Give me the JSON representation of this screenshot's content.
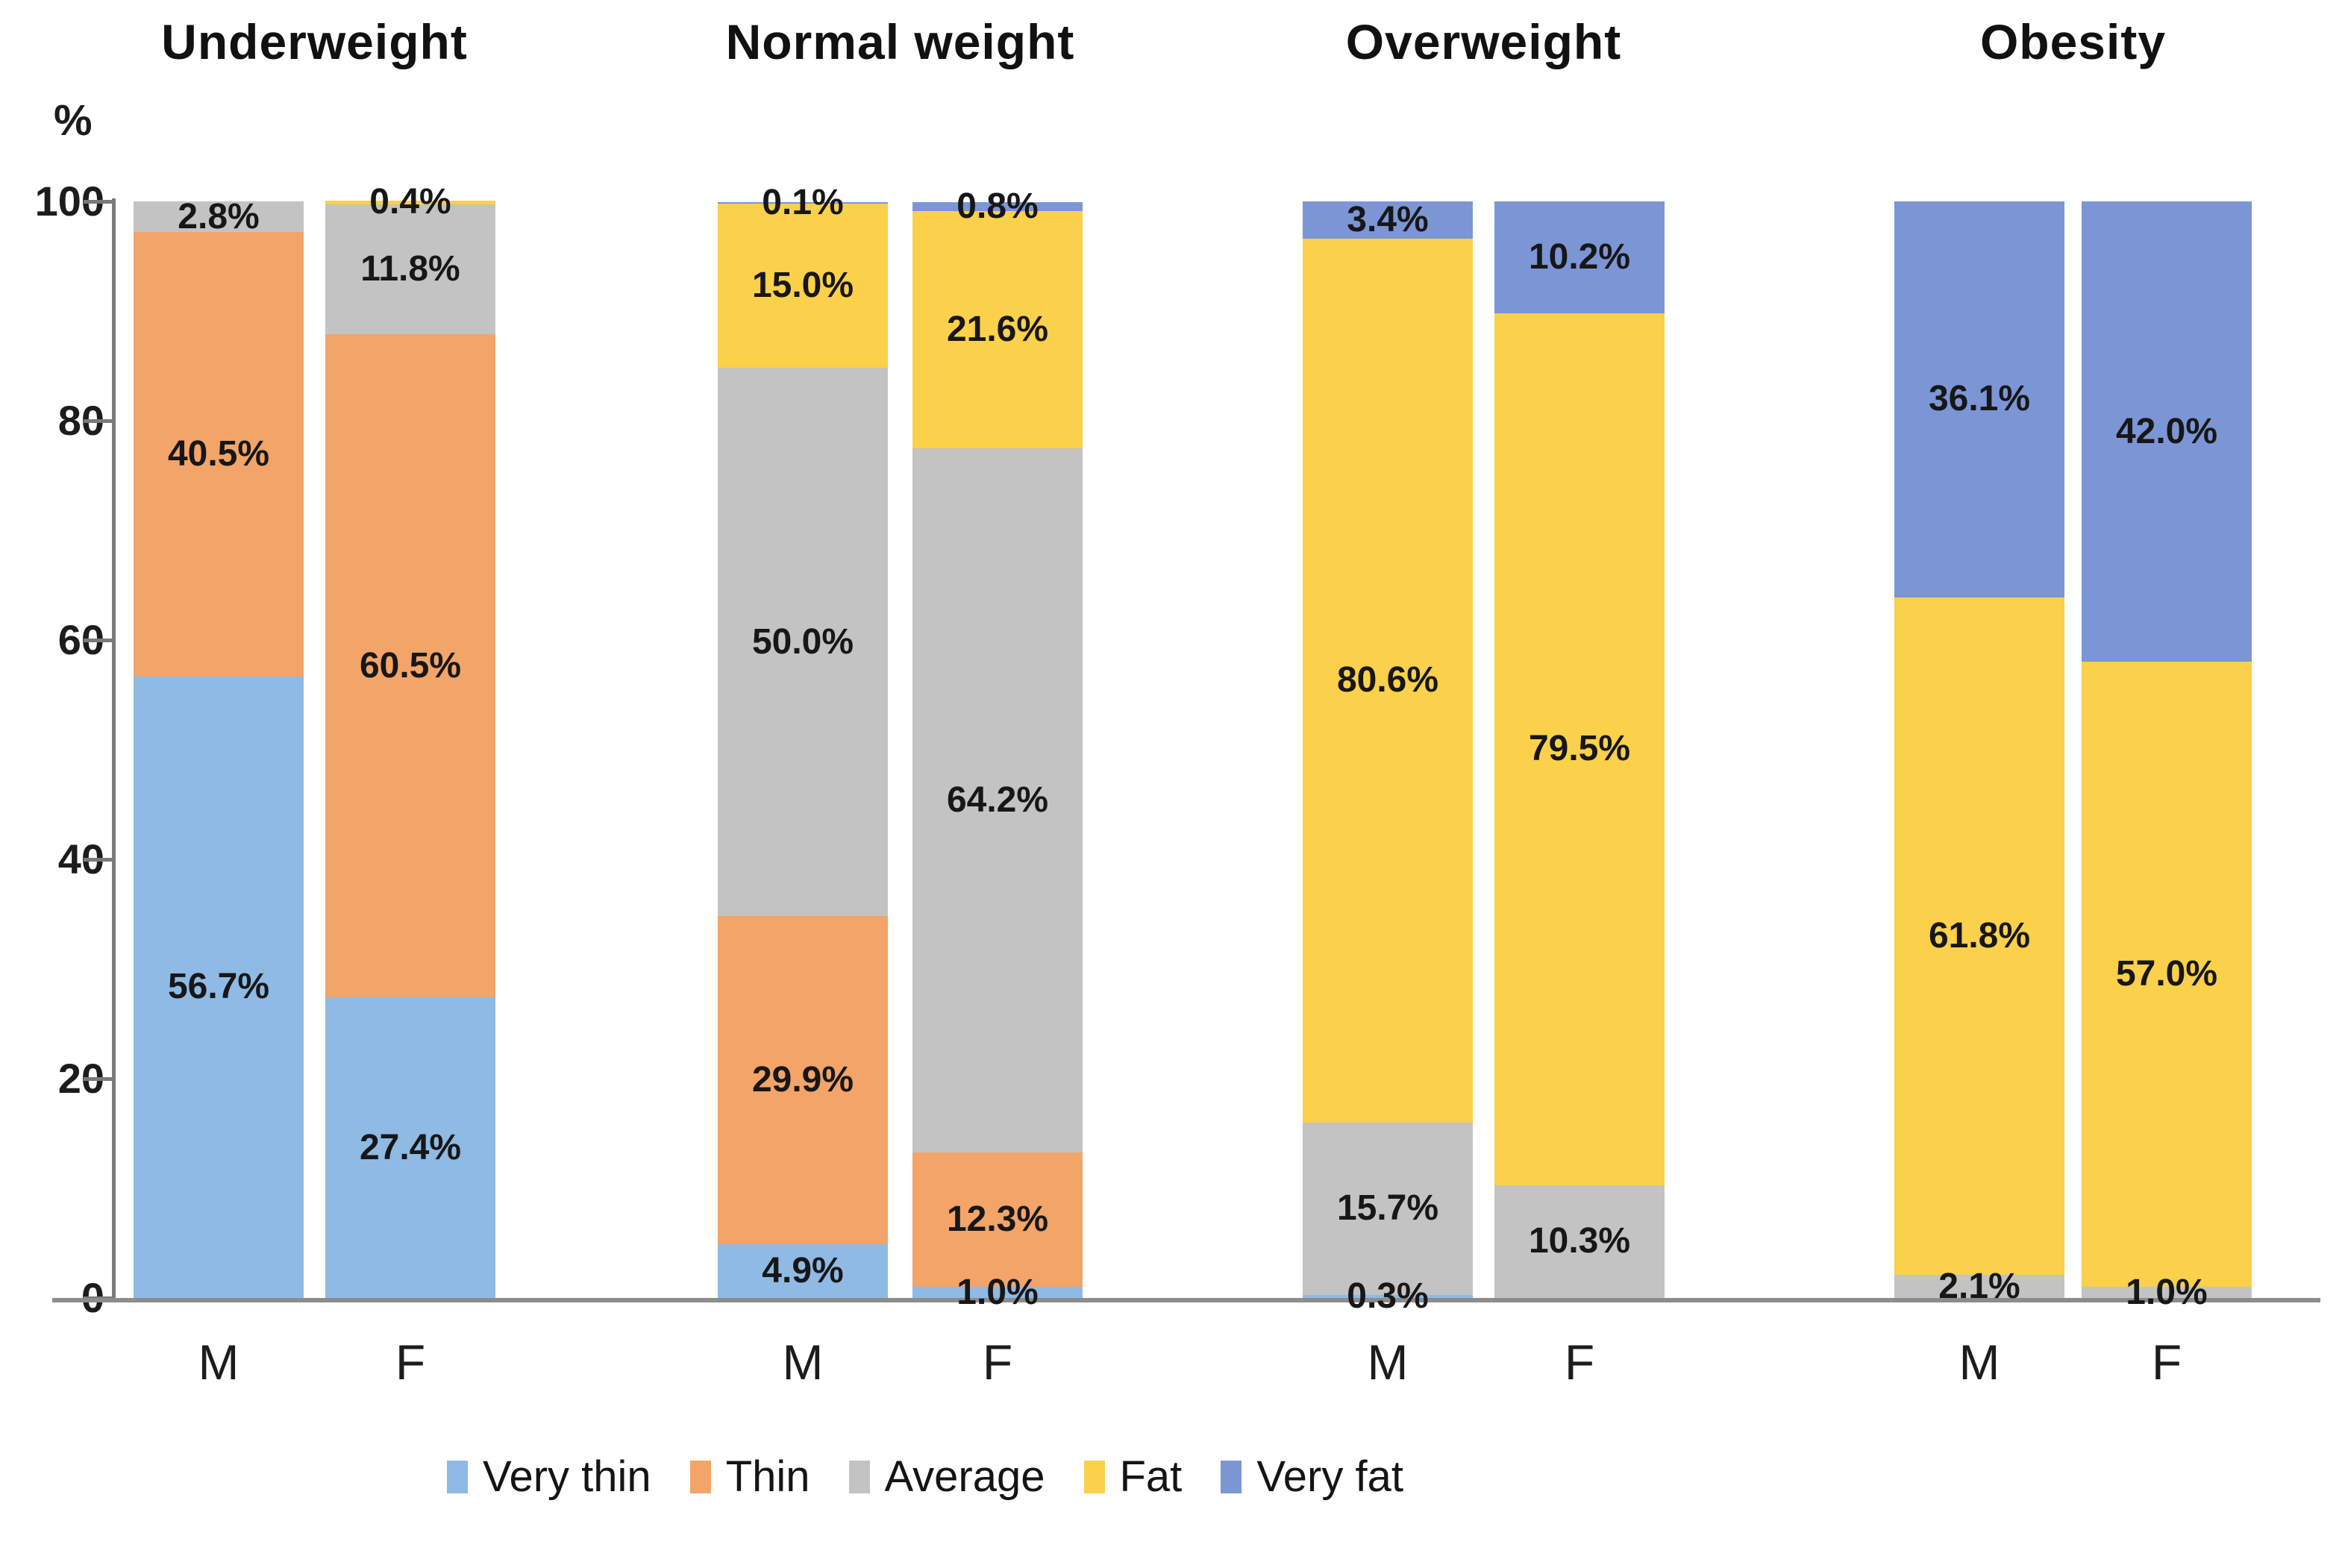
{
  "chart_data": {
    "type": "bar",
    "stacked": true,
    "orientation": "vertical",
    "unit_label": "%",
    "ylim": [
      0,
      100
    ],
    "yticks": [
      0,
      20,
      40,
      60,
      80,
      100
    ],
    "grid": false,
    "legend_position": "bottom",
    "legend": [
      {
        "name": "Very thin",
        "color": "#8EBAE4"
      },
      {
        "name": "Thin",
        "color": "#F2A469"
      },
      {
        "name": "Average",
        "color": "#C3C3C3"
      },
      {
        "name": "Fat",
        "color": "#FBD04A"
      },
      {
        "name": "Very fat",
        "color": "#7C95D5"
      }
    ],
    "groups": [
      {
        "title": "Underweight",
        "bars": [
          {
            "label": "M",
            "segments": [
              {
                "series": "Very thin",
                "value": 56.7
              },
              {
                "series": "Thin",
                "value": 40.5
              },
              {
                "series": "Average",
                "value": 2.8
              }
            ]
          },
          {
            "label": "F",
            "segments": [
              {
                "series": "Very thin",
                "value": 27.4
              },
              {
                "series": "Thin",
                "value": 60.5
              },
              {
                "series": "Average",
                "value": 11.8
              },
              {
                "series": "Fat",
                "value": 0.4
              }
            ]
          }
        ]
      },
      {
        "title": "Normal weight",
        "bars": [
          {
            "label": "M",
            "segments": [
              {
                "series": "Very thin",
                "value": 4.9
              },
              {
                "series": "Thin",
                "value": 29.9
              },
              {
                "series": "Average",
                "value": 50.0
              },
              {
                "series": "Fat",
                "value": 15.0
              },
              {
                "series": "Very fat",
                "value": 0.1
              }
            ]
          },
          {
            "label": "F",
            "segments": [
              {
                "series": "Very thin",
                "value": 1.0
              },
              {
                "series": "Thin",
                "value": 12.3
              },
              {
                "series": "Average",
                "value": 64.2
              },
              {
                "series": "Fat",
                "value": 21.6
              },
              {
                "series": "Very fat",
                "value": 0.8
              }
            ]
          }
        ]
      },
      {
        "title": "Overweight",
        "bars": [
          {
            "label": "M",
            "segments": [
              {
                "series": "Very thin",
                "value": 0.3
              },
              {
                "series": "Average",
                "value": 15.7
              },
              {
                "series": "Fat",
                "value": 80.6
              },
              {
                "series": "Very fat",
                "value": 3.4
              }
            ]
          },
          {
            "label": "F",
            "segments": [
              {
                "series": "Average",
                "value": 10.3
              },
              {
                "series": "Fat",
                "value": 79.5
              },
              {
                "series": "Very fat",
                "value": 10.2
              }
            ]
          }
        ]
      },
      {
        "title": "Obesity",
        "bars": [
          {
            "label": "M",
            "segments": [
              {
                "series": "Average",
                "value": 2.1
              },
              {
                "series": "Fat",
                "value": 61.8
              },
              {
                "series": "Very fat",
                "value": 36.1
              }
            ]
          },
          {
            "label": "F",
            "segments": [
              {
                "series": "Average",
                "value": 1.0
              },
              {
                "series": "Fat",
                "value": 57.0
              },
              {
                "series": "Very fat",
                "value": 42.0
              }
            ]
          }
        ]
      }
    ]
  }
}
